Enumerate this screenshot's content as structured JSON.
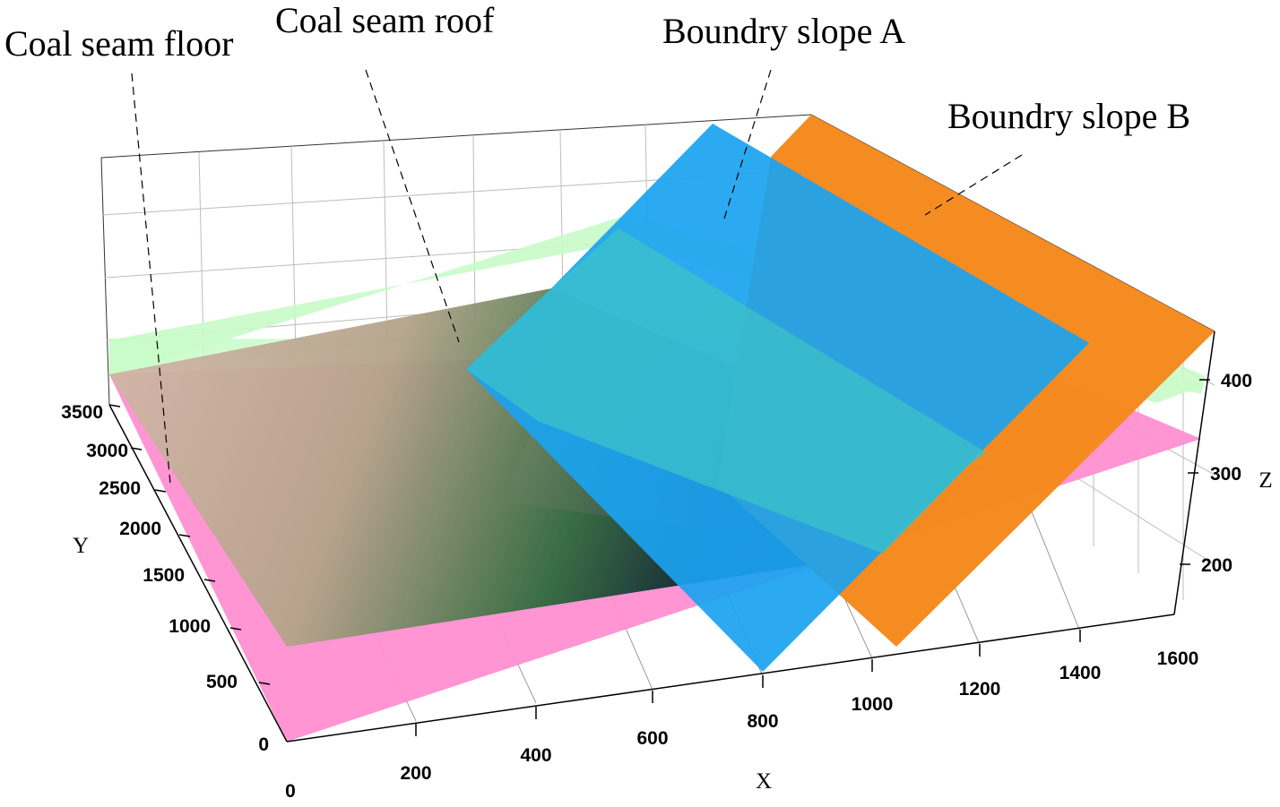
{
  "chart_data": {
    "type": "surface3d",
    "title": "",
    "xlabel": "X",
    "ylabel": "Y",
    "zlabel": "Z",
    "x_ticks": [
      0,
      200,
      400,
      600,
      800,
      1000,
      1200,
      1400,
      1600
    ],
    "y_ticks": [
      0,
      500,
      1000,
      1500,
      2000,
      2500,
      3000,
      3500
    ],
    "z_ticks": [
      200,
      300,
      400
    ],
    "xlim": [
      0,
      1600
    ],
    "ylim": [
      0,
      3500
    ],
    "zlim": [
      150,
      450
    ],
    "grid": true,
    "series": [
      {
        "name": "Coal seam floor",
        "color": "#ff8fd0",
        "description_type": "plane"
      },
      {
        "name": "Coal seam roof",
        "color": "#c8fbc8",
        "description_type": "plane"
      },
      {
        "name": "Boundry slope A",
        "color": "#1aa3f0",
        "description_type": "plane"
      },
      {
        "name": "Boundry slope B",
        "color": "#f58a1e",
        "description_type": "plane"
      }
    ],
    "annotations": [
      "Coal seam floor",
      "Coal seam roof",
      "Boundry slope A",
      "Boundry slope B"
    ]
  }
}
